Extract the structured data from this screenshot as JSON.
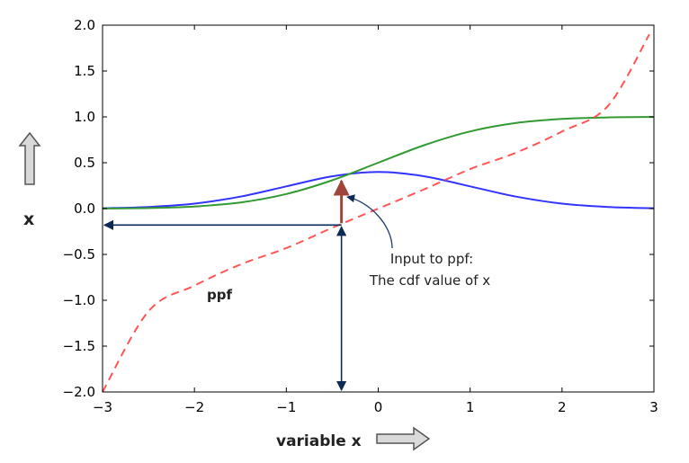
{
  "chart_data": {
    "type": "line",
    "xlabel": "variable x",
    "ylabel": "x",
    "xlim": [
      -3,
      3
    ],
    "ylim": [
      -2.0,
      2.0
    ],
    "x_ticks": [
      "−3",
      "−2",
      "−1",
      "0",
      "1",
      "2",
      "3"
    ],
    "y_ticks": [
      "−2.0",
      "−1.5",
      "−1.0",
      "−0.5",
      "0.0",
      "0.5",
      "1.0",
      "1.5",
      "2.0"
    ],
    "grid": false,
    "series": [
      {
        "color": "#3333ff",
        "style": "solid",
        "x": [
          -3,
          -2.5,
          -2,
          -1.5,
          -1,
          -0.5,
          0,
          0.5,
          1,
          1.5,
          2,
          2.5,
          3
        ],
        "y": [
          0.004,
          0.018,
          0.054,
          0.13,
          0.242,
          0.352,
          0.399,
          0.352,
          0.242,
          0.13,
          0.054,
          0.018,
          0.004
        ]
      },
      {
        "color": "#339933",
        "style": "solid",
        "x": [
          -3,
          -2.5,
          -2,
          -1.5,
          -1,
          -0.5,
          0,
          0.5,
          1,
          1.5,
          2,
          2.5,
          3
        ],
        "y": [
          0.001,
          0.006,
          0.023,
          0.067,
          0.159,
          0.309,
          0.5,
          0.691,
          0.841,
          0.933,
          0.977,
          0.994,
          0.999
        ]
      },
      {
        "name": "ppf",
        "color": "#ff5555",
        "style": "dashed",
        "x": [
          -3,
          -2.5,
          -2,
          -1.5,
          -1,
          -0.5,
          0,
          0.5,
          1,
          1.5,
          2,
          2.5,
          2.95
        ],
        "y": [
          -2.0,
          -1.12,
          -0.84,
          -0.61,
          -0.43,
          -0.21,
          0.0,
          0.21,
          0.43,
          0.61,
          0.84,
          1.12,
          1.9
        ]
      }
    ],
    "annotation_point_x": -0.4,
    "annotations": {
      "series_label": "ppf",
      "callout_line1": "Input to ppf:",
      "callout_line2": "The cdf value of x"
    }
  },
  "colors": {
    "pdf": "#3333ff",
    "cdf": "#339933",
    "ppf": "#ff5555",
    "guide_arrows": "#0b2a55",
    "input_arrow": "#a0453a",
    "block_arrow_fill": "#d9d9d9",
    "block_arrow_stroke": "#555555"
  },
  "icons": {
    "y_axis": "up-block-arrow-icon",
    "x_axis": "right-block-arrow-icon"
  }
}
